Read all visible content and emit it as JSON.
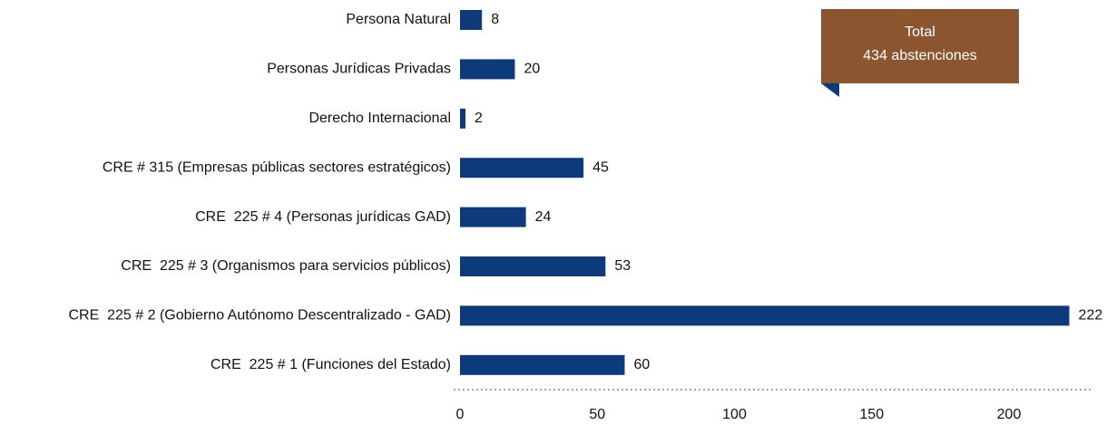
{
  "chart_data": {
    "type": "bar",
    "orientation": "horizontal",
    "categories": [
      "Persona Natural",
      "Personas Jurídicas Privadas",
      "Derecho Internacional",
      "CRE # 315 (Empresas públicas sectores estratégicos)",
      "CRE  225 # 4 (Personas jurídicas GAD)",
      "CRE  225 # 3 (Organismos para servicios públicos)",
      "CRE  225 # 2 (Gobierno Autónomo Descentralizado - GAD)",
      "CRE  225 # 1 (Funciones del Estado)"
    ],
    "values": [
      8,
      20,
      2,
      45,
      24,
      53,
      222,
      60
    ],
    "color": "#0d3a7a",
    "xlim": [
      0,
      230
    ],
    "xticks": [
      0,
      50,
      100,
      150,
      200
    ],
    "grid": false,
    "annotation": [
      "Total",
      "434 abstenciones"
    ],
    "annotation_color": "#8b5530"
  }
}
